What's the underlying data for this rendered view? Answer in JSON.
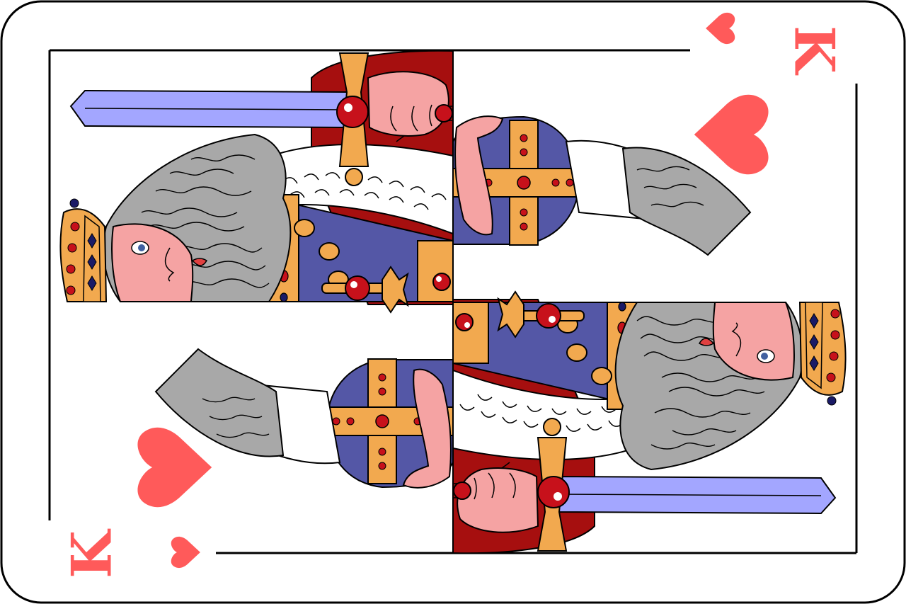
{
  "card": {
    "rank": "K",
    "suit": "hearts",
    "suit_icon": "heart-icon",
    "colors": {
      "suit_red": "#ff5a5a",
      "robe_dark_red": "#a60f0f",
      "robe_blue": "#5457a6",
      "gold": "#f2a94f",
      "jewel_red": "#c7111b",
      "blade": "#a3a6ff",
      "skin": "#f5a3a3",
      "hair": "#a8a8a8",
      "fur_white": "#ffffff",
      "outline": "#000000"
    }
  }
}
